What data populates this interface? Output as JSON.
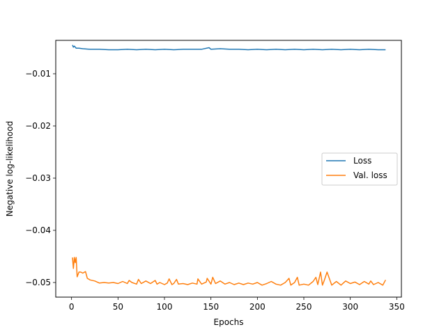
{
  "chart_data": {
    "type": "line",
    "title": "",
    "xlabel": "Epochs",
    "ylabel": "Negative log-likelihood",
    "xlim": [
      -17,
      355
    ],
    "ylim": [
      -0.0528,
      -0.0036
    ],
    "xticks": [
      0,
      50,
      100,
      150,
      200,
      250,
      300,
      350
    ],
    "xtick_labels": [
      "0",
      "50",
      "100",
      "150",
      "200",
      "250",
      "300",
      "350"
    ],
    "yticks": [
      -0.01,
      -0.02,
      -0.03,
      -0.04,
      -0.05
    ],
    "ytick_labels": [
      "−0.01",
      "−0.02",
      "−0.03",
      "−0.04",
      "−0.05"
    ],
    "grid": false,
    "legend_position": "center-right",
    "series": [
      {
        "name": "Loss",
        "color": "#1f77b4",
        "x": [
          1,
          2,
          3,
          5,
          8,
          12,
          20,
          30,
          40,
          50,
          60,
          70,
          80,
          90,
          100,
          110,
          120,
          130,
          140,
          148,
          150,
          160,
          170,
          180,
          190,
          200,
          210,
          220,
          230,
          240,
          250,
          260,
          270,
          280,
          290,
          300,
          310,
          320,
          330,
          338
        ],
        "values": [
          -0.0045,
          -0.0049,
          -0.0047,
          -0.0051,
          -0.0051,
          -0.0052,
          -0.0053,
          -0.0053,
          -0.0054,
          -0.0054,
          -0.0053,
          -0.0054,
          -0.0053,
          -0.0054,
          -0.0053,
          -0.0054,
          -0.0053,
          -0.0053,
          -0.0053,
          -0.005,
          -0.0053,
          -0.0052,
          -0.0053,
          -0.0053,
          -0.0054,
          -0.0053,
          -0.0054,
          -0.0053,
          -0.0054,
          -0.0053,
          -0.0054,
          -0.0053,
          -0.0054,
          -0.0053,
          -0.0054,
          -0.0053,
          -0.0054,
          -0.0053,
          -0.0054,
          -0.0054
        ]
      },
      {
        "name": "Val. loss",
        "color": "#ff7f0e",
        "x": [
          1,
          2,
          3,
          4,
          5,
          6,
          8,
          10,
          12,
          15,
          17,
          20,
          25,
          30,
          35,
          40,
          45,
          50,
          55,
          60,
          62,
          65,
          70,
          72,
          75,
          80,
          85,
          90,
          92,
          95,
          100,
          103,
          105,
          108,
          110,
          113,
          115,
          120,
          125,
          130,
          135,
          136,
          140,
          145,
          146,
          150,
          152,
          155,
          160,
          165,
          170,
          175,
          180,
          185,
          190,
          195,
          200,
          205,
          210,
          215,
          220,
          225,
          230,
          234,
          236,
          240,
          243,
          245,
          250,
          255,
          260,
          263,
          265,
          268,
          270,
          272,
          275,
          280,
          285,
          290,
          295,
          300,
          305,
          310,
          315,
          320,
          322,
          325,
          330,
          335,
          338
        ],
        "values": [
          -0.0452,
          -0.0473,
          -0.0452,
          -0.0462,
          -0.0452,
          -0.0489,
          -0.048,
          -0.048,
          -0.0482,
          -0.0479,
          -0.0492,
          -0.0495,
          -0.0497,
          -0.0501,
          -0.05,
          -0.0501,
          -0.05,
          -0.0502,
          -0.0498,
          -0.0502,
          -0.0496,
          -0.05,
          -0.0503,
          -0.0494,
          -0.0502,
          -0.0497,
          -0.0502,
          -0.0496,
          -0.0503,
          -0.05,
          -0.0504,
          -0.0501,
          -0.0493,
          -0.0504,
          -0.0502,
          -0.0494,
          -0.0503,
          -0.0502,
          -0.0504,
          -0.0501,
          -0.0503,
          -0.0493,
          -0.0503,
          -0.0499,
          -0.0492,
          -0.0503,
          -0.049,
          -0.0502,
          -0.0497,
          -0.0503,
          -0.05,
          -0.0504,
          -0.0501,
          -0.0504,
          -0.0501,
          -0.0503,
          -0.05,
          -0.0505,
          -0.0502,
          -0.0498,
          -0.0503,
          -0.0505,
          -0.05,
          -0.0492,
          -0.0505,
          -0.05,
          -0.049,
          -0.0505,
          -0.0503,
          -0.0505,
          -0.0498,
          -0.049,
          -0.0504,
          -0.048,
          -0.0505,
          -0.0496,
          -0.048,
          -0.0505,
          -0.0498,
          -0.0505,
          -0.0497,
          -0.0502,
          -0.0499,
          -0.0504,
          -0.0498,
          -0.0503,
          -0.0497,
          -0.0504,
          -0.05,
          -0.0505,
          -0.0495
        ]
      }
    ]
  }
}
